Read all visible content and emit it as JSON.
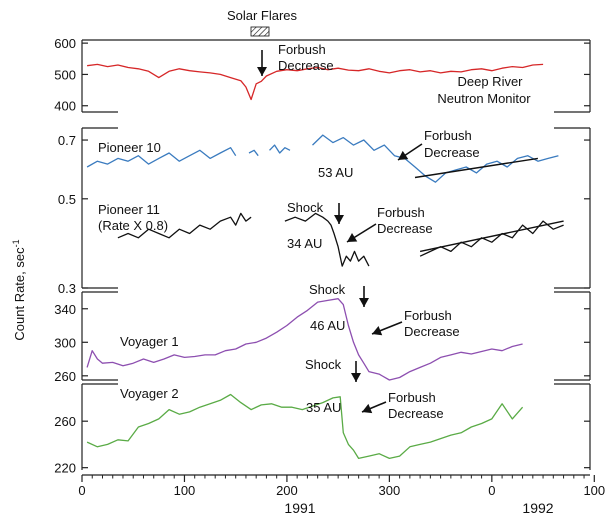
{
  "figure": {
    "ylabel": "Count Rate, sec",
    "ylabel_sup": "-1",
    "x_ticks": [
      "0",
      "100",
      "200",
      "300",
      "0",
      "100"
    ],
    "year_labels": [
      "1991",
      "1992"
    ],
    "solar_flares_label": "Solar Flares"
  },
  "colors": {
    "neutron": "#d62728",
    "pioneer10": "#3a7bbf",
    "pioneer11": "#111111",
    "voyager1": "#8d4fb0",
    "voyager2": "#5aab46",
    "axis": "#222222"
  },
  "chart_data": [
    {
      "type": "line",
      "title": "Deep River Neutron Monitor",
      "series_label": [
        "Deep River",
        "Neutron Monitor"
      ],
      "x_unit": "day",
      "ylim": [
        380,
        610
      ],
      "y_ticks": [
        400,
        500,
        600
      ],
      "annotation": [
        "Forbush",
        "Decrease"
      ],
      "x": [
        5,
        15,
        25,
        35,
        45,
        55,
        65,
        75,
        85,
        95,
        105,
        115,
        125,
        135,
        145,
        155,
        160,
        165,
        170,
        175,
        180,
        190,
        200,
        210,
        220,
        230,
        240,
        250,
        260,
        270,
        280,
        290,
        300,
        310,
        320,
        330,
        340,
        350,
        360,
        370,
        380,
        390,
        400,
        410,
        420,
        430,
        440,
        450
      ],
      "values": [
        528,
        532,
        525,
        530,
        522,
        518,
        510,
        490,
        510,
        518,
        512,
        508,
        505,
        500,
        490,
        480,
        460,
        420,
        470,
        478,
        495,
        510,
        515,
        512,
        518,
        522,
        515,
        520,
        514,
        512,
        518,
        510,
        505,
        512,
        515,
        508,
        512,
        505,
        510,
        508,
        515,
        518,
        512,
        520,
        525,
        522,
        530,
        532
      ]
    },
    {
      "type": "line",
      "title": "Pioneer 10",
      "distance_label": "53 AU",
      "x_unit": "day",
      "ylim": [
        0.3,
        0.75
      ],
      "y_ticks": [
        0.3,
        0.5,
        0.7
      ],
      "annotation": [
        "Forbush",
        "Decrease"
      ],
      "segments": [
        {
          "x": [
            5,
            15,
            25,
            35,
            45,
            55,
            65,
            75,
            85,
            95,
            105,
            115,
            125,
            135,
            145,
            150
          ],
          "values": [
            0.6,
            0.62,
            0.61,
            0.63,
            0.62,
            0.64,
            0.61,
            0.63,
            0.65,
            0.62,
            0.64,
            0.66,
            0.63,
            0.65,
            0.67,
            0.64
          ]
        },
        {
          "x": [
            163,
            168,
            172
          ],
          "values": [
            0.65,
            0.66,
            0.64
          ]
        },
        {
          "x": [
            183,
            188,
            193,
            198,
            203
          ],
          "values": [
            0.66,
            0.68,
            0.65,
            0.67,
            0.66
          ]
        },
        {
          "x": [
            225,
            235,
            245,
            255,
            265,
            275,
            285,
            295,
            305,
            315,
            325,
            335,
            345,
            355,
            365,
            375,
            385,
            395,
            405,
            415,
            425,
            435,
            445,
            455,
            465
          ],
          "values": [
            0.68,
            0.72,
            0.69,
            0.71,
            0.68,
            0.7,
            0.66,
            0.68,
            0.64,
            0.63,
            0.6,
            0.57,
            0.55,
            0.58,
            0.59,
            0.6,
            0.58,
            0.61,
            0.62,
            0.6,
            0.63,
            0.64,
            0.62,
            0.63,
            0.64
          ]
        }
      ],
      "trend": {
        "x": [
          325,
          445
        ],
        "values": [
          0.565,
          0.63
        ]
      }
    },
    {
      "type": "line",
      "title": "Pioneer 11",
      "subtitle": "(Rate X 0.8)",
      "distance_label": "34 AU",
      "annotation": [
        "Forbush",
        "Decrease"
      ],
      "shock_label": "Shock",
      "x_unit": "day",
      "ylim": [
        0.3,
        0.75
      ],
      "y_ticks": [
        0.3,
        0.5,
        0.7
      ],
      "segments": [
        {
          "x": [
            35,
            45,
            55,
            65,
            75,
            85,
            95,
            105,
            115,
            125,
            135,
            145,
            150,
            155,
            160,
            165
          ],
          "values": [
            0.4,
            0.41,
            0.4,
            0.42,
            0.41,
            0.4,
            0.42,
            0.41,
            0.43,
            0.42,
            0.44,
            0.45,
            0.43,
            0.46,
            0.44,
            0.45
          ]
        },
        {
          "x": [
            198,
            208,
            218,
            228,
            235,
            240,
            243,
            246,
            250,
            254,
            258,
            262,
            266,
            270,
            275,
            280
          ],
          "values": [
            0.44,
            0.45,
            0.44,
            0.46,
            0.45,
            0.44,
            0.43,
            0.41,
            0.38,
            0.34,
            0.36,
            0.35,
            0.37,
            0.35,
            0.36,
            0.34
          ]
        },
        {
          "x": [
            330,
            340,
            350,
            360,
            370,
            380,
            390,
            400,
            410,
            420,
            430,
            440,
            450,
            460,
            470
          ],
          "values": [
            0.36,
            0.37,
            0.38,
            0.37,
            0.39,
            0.38,
            0.4,
            0.39,
            0.41,
            0.4,
            0.43,
            0.41,
            0.44,
            0.42,
            0.43
          ]
        }
      ],
      "trend": {
        "x": [
          330,
          470
        ],
        "values": [
          0.37,
          0.44
        ]
      }
    },
    {
      "type": "line",
      "title": "Voyager 1",
      "distance_label": "46 AU",
      "annotation": [
        "Forbush",
        "Decrease"
      ],
      "shock_label": "Shock",
      "x_unit": "day",
      "ylim": [
        255,
        360
      ],
      "y_ticks": [
        260,
        300,
        340
      ],
      "x": [
        5,
        10,
        15,
        20,
        30,
        40,
        50,
        60,
        70,
        80,
        90,
        100,
        110,
        120,
        130,
        140,
        150,
        160,
        170,
        180,
        190,
        200,
        210,
        220,
        230,
        240,
        250,
        255,
        260,
        265,
        270,
        275,
        280,
        290,
        300,
        310,
        320,
        330,
        340,
        350,
        360,
        370,
        380,
        390,
        400,
        410,
        420,
        430
      ],
      "values": [
        270,
        290,
        280,
        275,
        276,
        272,
        275,
        280,
        276,
        280,
        285,
        282,
        283,
        285,
        285,
        290,
        292,
        298,
        300,
        305,
        312,
        320,
        330,
        338,
        348,
        350,
        352,
        345,
        320,
        300,
        285,
        275,
        265,
        262,
        255,
        258,
        265,
        270,
        275,
        282,
        285,
        288,
        286,
        289,
        292,
        290,
        295,
        298
      ]
    },
    {
      "type": "line",
      "title": "Voyager 2",
      "distance_label": "35 AU",
      "annotation": [
        "Forbush",
        "Decrease"
      ],
      "shock_label": "Shock",
      "x_unit": "day",
      "ylim": [
        218,
        292
      ],
      "y_ticks": [
        220,
        260
      ],
      "x": [
        5,
        15,
        25,
        35,
        45,
        55,
        65,
        75,
        85,
        95,
        105,
        115,
        125,
        135,
        145,
        155,
        165,
        175,
        185,
        195,
        205,
        215,
        225,
        235,
        245,
        252,
        255,
        260,
        265,
        270,
        280,
        290,
        300,
        310,
        320,
        330,
        340,
        350,
        360,
        370,
        380,
        390,
        400,
        410,
        420,
        430
      ],
      "values": [
        242,
        238,
        240,
        244,
        243,
        255,
        258,
        262,
        270,
        266,
        268,
        272,
        275,
        278,
        283,
        276,
        270,
        274,
        275,
        272,
        272,
        270,
        273,
        276,
        280,
        281,
        250,
        240,
        235,
        228,
        230,
        232,
        228,
        230,
        238,
        240,
        242,
        245,
        248,
        250,
        255,
        258,
        262,
        275,
        262,
        272
      ]
    }
  ]
}
